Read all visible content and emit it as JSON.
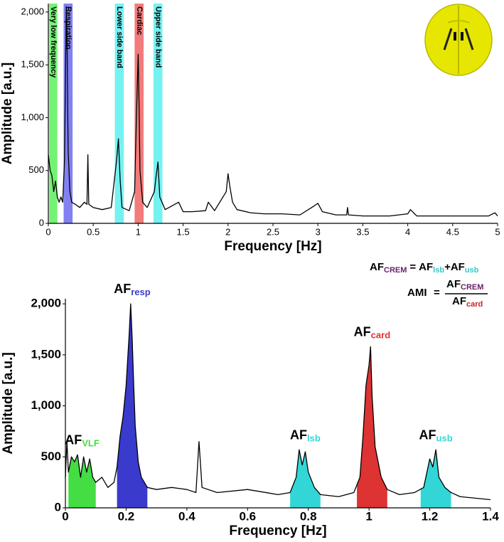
{
  "chart_data": [
    {
      "type": "line",
      "xlabel": "Frequency [Hz]",
      "ylabel": "Amplitude [a.u.]",
      "xlim": [
        0,
        5
      ],
      "ylim": [
        0,
        2080
      ],
      "xticks": [
        0,
        0.5,
        1,
        1.5,
        2,
        2.5,
        3,
        3.5,
        4,
        4.5,
        5
      ],
      "yticks": [
        0,
        500,
        {
          "value": 1000,
          "label": "1,000"
        },
        {
          "value": 1500,
          "label": "1,500"
        },
        {
          "value": 2000,
          "label": "2,000"
        }
      ],
      "bands": [
        {
          "label": "Very low frequency",
          "range": [
            0.01,
            0.1
          ],
          "color": "#5cf05c"
        },
        {
          "label": "Respiration",
          "range": [
            0.17,
            0.27
          ],
          "color": "#6b6bf0"
        },
        {
          "label": "Lower side band",
          "range": [
            0.74,
            0.84
          ],
          "color": "#5cf0f0"
        },
        {
          "label": "Cardiac",
          "range": [
            0.96,
            1.06
          ],
          "color": "#f06464"
        },
        {
          "label": "Upper side band",
          "range": [
            1.17,
            1.27
          ],
          "color": "#5cf0f0"
        }
      ],
      "x": [
        0,
        0.02,
        0.04,
        0.06,
        0.08,
        0.1,
        0.12,
        0.14,
        0.16,
        0.18,
        0.2,
        0.21,
        0.22,
        0.24,
        0.26,
        0.3,
        0.35,
        0.4,
        0.43,
        0.44,
        0.45,
        0.5,
        0.6,
        0.7,
        0.76,
        0.78,
        0.8,
        0.82,
        0.9,
        0.96,
        0.98,
        1.0,
        1.01,
        1.02,
        1.05,
        1.1,
        1.18,
        1.2,
        1.22,
        1.24,
        1.3,
        1.45,
        1.5,
        1.6,
        1.75,
        1.78,
        1.85,
        1.98,
        2.0,
        2.02,
        2.05,
        2.1,
        2.25,
        2.4,
        2.6,
        2.8,
        2.95,
        3.0,
        3.05,
        3.2,
        3.32,
        3.33,
        3.34,
        3.5,
        3.8,
        4.0,
        4.03,
        4.1,
        4.5,
        4.9,
        4.97,
        5.0
      ],
      "series": [
        {
          "color": "#000000",
          "values": [
            650,
            500,
            450,
            300,
            400,
            250,
            200,
            250,
            200,
            600,
            2050,
            1600,
            700,
            300,
            200,
            180,
            150,
            200,
            180,
            650,
            180,
            150,
            130,
            150,
            600,
            800,
            400,
            150,
            120,
            300,
            1000,
            1600,
            1100,
            500,
            200,
            150,
            300,
            450,
            580,
            250,
            130,
            200,
            110,
            110,
            120,
            200,
            120,
            300,
            470,
            350,
            200,
            130,
            100,
            90,
            90,
            80,
            160,
            190,
            110,
            80,
            80,
            150,
            80,
            70,
            70,
            90,
            130,
            70,
            70,
            70,
            100,
            70
          ]
        }
      ]
    },
    {
      "type": "line",
      "xlabel": "Frequency [Hz]",
      "ylabel": "Amplitude [a.u.]",
      "xlim": [
        0,
        1.4
      ],
      "ylim": [
        0,
        2050
      ],
      "xticks": [
        0,
        0.2,
        0.4,
        0.6,
        0.8,
        1,
        1.2,
        1.4
      ],
      "yticks": [
        0,
        500,
        {
          "value": 1000,
          "label": "1,000"
        },
        {
          "value": 1500,
          "label": "1,500"
        },
        {
          "value": 2000,
          "label": "2,000"
        }
      ],
      "bands": [
        {
          "label": "AF",
          "sub": "VLF",
          "range": [
            0.01,
            0.1
          ],
          "color": "#44dd44"
        },
        {
          "label": "AF",
          "sub": "resp",
          "range": [
            0.17,
            0.27
          ],
          "color": "#3a3acc"
        },
        {
          "label": "AF",
          "sub": "lsb",
          "range": [
            0.74,
            0.84
          ],
          "color": "#33d6d6"
        },
        {
          "label": "AF",
          "sub": "card",
          "range": [
            0.96,
            1.06
          ],
          "color": "#dd3333"
        },
        {
          "label": "AF",
          "sub": "usb",
          "range": [
            1.17,
            1.27
          ],
          "color": "#33d6d6"
        }
      ],
      "x": [
        0,
        0.005,
        0.01,
        0.02,
        0.03,
        0.04,
        0.05,
        0.06,
        0.07,
        0.08,
        0.09,
        0.1,
        0.12,
        0.14,
        0.16,
        0.17,
        0.18,
        0.19,
        0.2,
        0.21,
        0.215,
        0.22,
        0.225,
        0.23,
        0.24,
        0.25,
        0.27,
        0.3,
        0.35,
        0.4,
        0.43,
        0.44,
        0.45,
        0.5,
        0.6,
        0.7,
        0.74,
        0.76,
        0.77,
        0.78,
        0.79,
        0.8,
        0.82,
        0.84,
        0.9,
        0.95,
        0.97,
        0.98,
        0.99,
        1.0,
        1.005,
        1.01,
        1.02,
        1.04,
        1.06,
        1.1,
        1.15,
        1.18,
        1.2,
        1.21,
        1.22,
        1.23,
        1.25,
        1.27,
        1.3,
        1.4
      ],
      "series": [
        {
          "color": "#000000",
          "values": [
            300,
            650,
            350,
            500,
            450,
            520,
            300,
            500,
            350,
            480,
            300,
            250,
            300,
            200,
            250,
            400,
            700,
            900,
            1200,
            1700,
            2000,
            1650,
            1200,
            800,
            450,
            300,
            200,
            180,
            200,
            180,
            150,
            650,
            200,
            150,
            180,
            130,
            150,
            300,
            570,
            420,
            550,
            350,
            200,
            130,
            110,
            150,
            300,
            700,
            1200,
            1400,
            1580,
            1100,
            600,
            300,
            180,
            130,
            150,
            200,
            480,
            400,
            570,
            300,
            200,
            150,
            110,
            80
          ]
        }
      ]
    }
  ],
  "formulas": {
    "crem": {
      "lhs": "AF",
      "lhs_sub": "CREM",
      "eq": "=",
      "a": "AF",
      "a_sub": "lsb",
      "plus": "+",
      "b": "AF",
      "b_sub": "usb"
    },
    "ami": {
      "lhs": "AMI",
      "eq": "=",
      "num": "AF",
      "num_sub": "CREM",
      "den": "AF",
      "den_sub": "card"
    }
  }
}
